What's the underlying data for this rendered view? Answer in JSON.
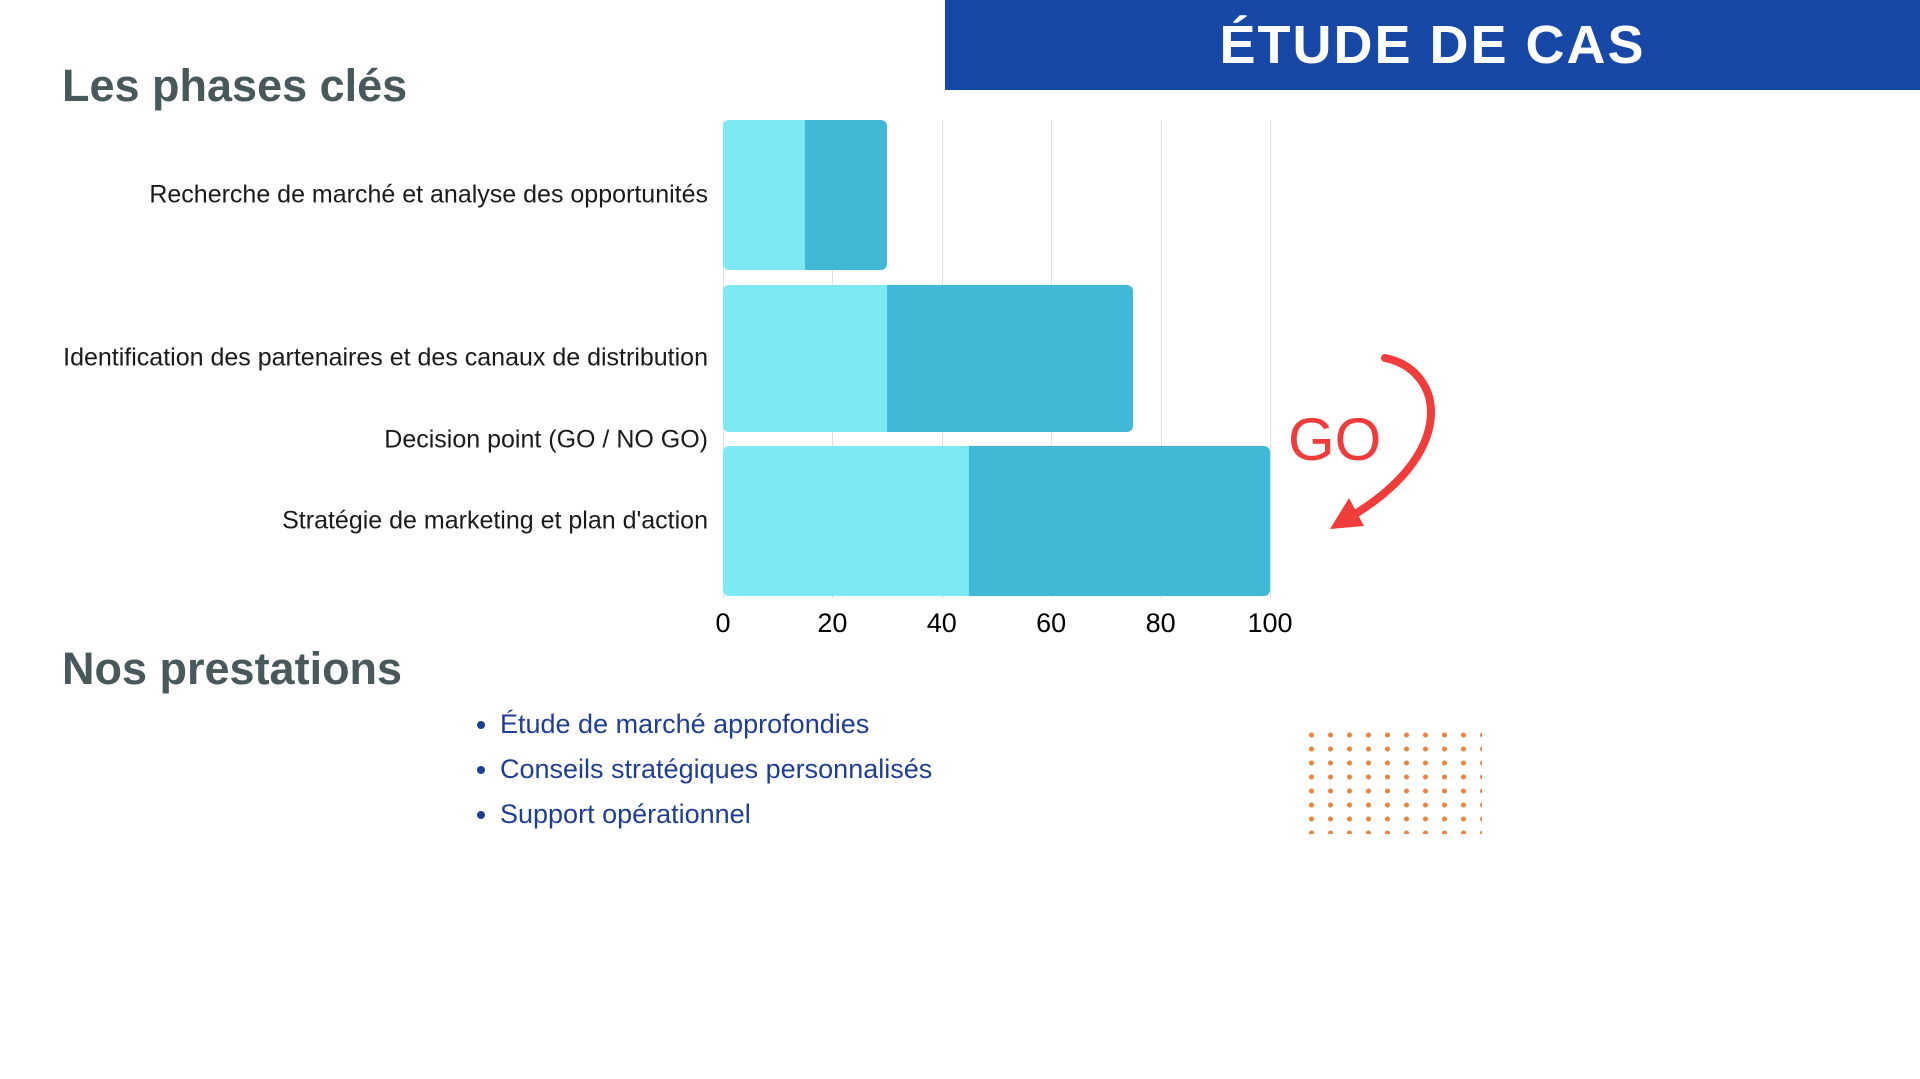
{
  "header": {
    "title": "ÉTUDE DE CAS",
    "bg_color": "#1748a8"
  },
  "sections": {
    "phases_title": "Les phases clés",
    "prestations_title": "Nos prestations"
  },
  "chart_data": {
    "type": "bar",
    "orientation": "horizontal",
    "title": "Les phases clés",
    "xlabel": "",
    "ylabel": "",
    "xlim": [
      0,
      100
    ],
    "x_ticks": [
      0,
      20,
      40,
      60,
      80,
      100
    ],
    "grid": true,
    "legend_position": "none",
    "segment_colors": [
      "#7de9f2",
      "#41b9d6"
    ],
    "rows": [
      {
        "label": "Recherche de marché et analyse des opportunités",
        "segments": [
          [
            0,
            15
          ],
          [
            15,
            30
          ]
        ]
      },
      {
        "label": "Identification des partenaires et des canaux de distribution",
        "segments": [
          [
            0,
            30
          ],
          [
            30,
            75
          ]
        ]
      },
      {
        "label": "Decision point (GO / NO GO)",
        "segments": []
      },
      {
        "label": "Stratégie de marketing et plan d'action",
        "segments": [
          [
            0,
            45
          ],
          [
            45,
            100
          ]
        ]
      }
    ]
  },
  "annotation": {
    "go_label": "GO",
    "color": "#f13c3c"
  },
  "prestations": {
    "items": [
      "Étude de marché approfondies",
      "Conseils stratégiques personnalisés",
      "Support opérationnel"
    ]
  },
  "decoration": {
    "dots_color": "#e8843c"
  }
}
